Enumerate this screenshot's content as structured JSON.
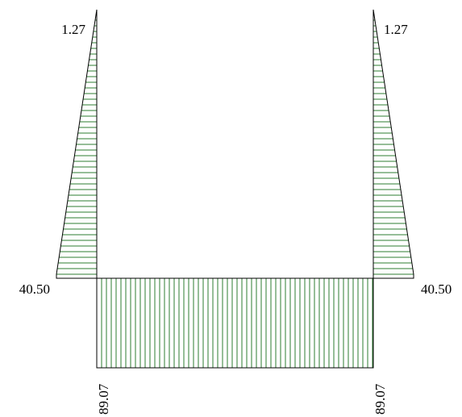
{
  "diagram": {
    "left_member": {
      "top_value": "1.27",
      "bottom_value": "40.50"
    },
    "right_member": {
      "top_value": "1.27",
      "bottom_value": "40.50"
    },
    "beam": {
      "left_value": "89.07",
      "right_value": "89.07"
    }
  },
  "colors": {
    "hatch": "#2e7d32",
    "outline": "#000000",
    "background": "#ffffff"
  }
}
